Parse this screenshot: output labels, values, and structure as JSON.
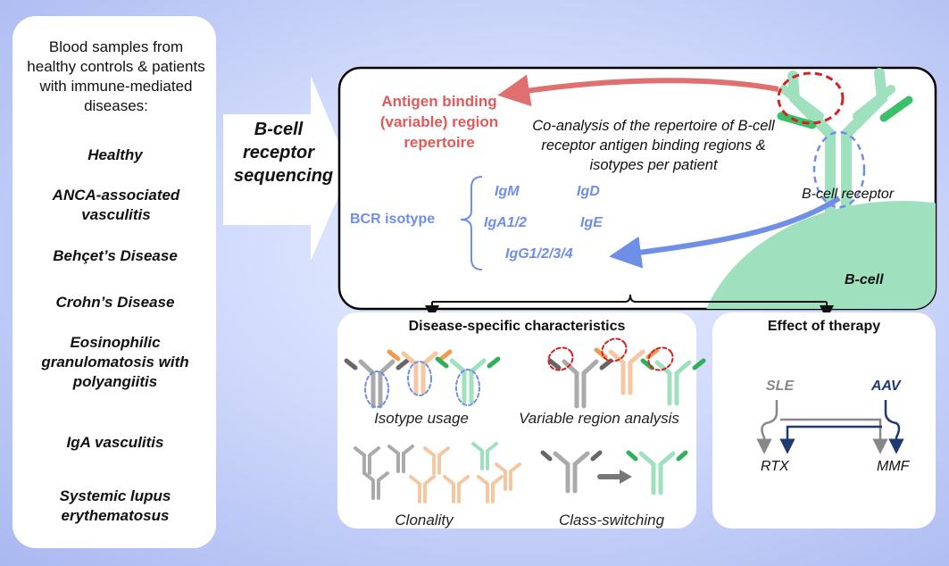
{
  "left_panel": {
    "intro": "Blood samples from healthy controls & patients with immune-mediated diseases:",
    "groups": [
      "Healthy",
      "ANCA-associated vasculitis",
      "Behçet’s Disease",
      "Crohn’s Disease",
      "Eosinophilic granulomatosis with polyangiitis",
      "IgA vasculitis",
      "Systemic lupus erythematosus"
    ]
  },
  "arrow_label": "B-cell receptor sequencing",
  "main_panel": {
    "antigen_label": "Antigen binding (variable) region repertoire",
    "coanalysis_text": "Co-analysis of the repertoire of B-cell receptor antigen binding regions & isotypes per patient",
    "receptor_label": "B-cell receptor",
    "bcell_label": "B-cell",
    "isotype_label": "BCR isotype",
    "isotypes": [
      "IgM",
      "IgD",
      "IgA1/2",
      "IgE",
      "IgG1/2/3/4"
    ]
  },
  "disease_panel": {
    "title": "Disease-specific characteristics",
    "captions": [
      "Isotype usage",
      "Variable region analysis",
      "Clonality",
      "Class-switching"
    ]
  },
  "therapy_panel": {
    "title": "Effect of therapy",
    "drugs_top": [
      "SLE",
      "AAV"
    ],
    "drugs_bottom": [
      "RTX",
      "MMF"
    ]
  },
  "colors": {
    "antigen_red": "#e05a5a",
    "isotype_blue": "#6f8fe6",
    "bcell_green": "#8fdcb2",
    "navy": "#1f3a73"
  }
}
